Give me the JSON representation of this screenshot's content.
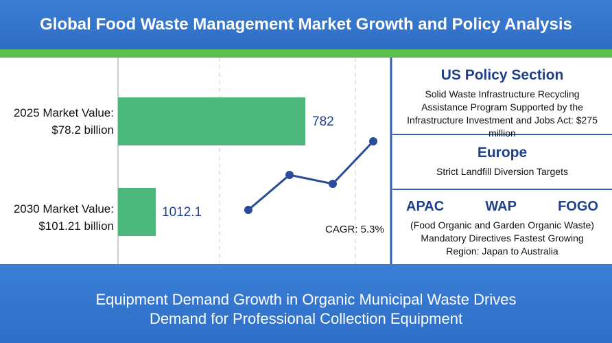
{
  "header": {
    "title": "Global Food Waste Management Market Growth and Policy Analysis"
  },
  "market": {
    "items": [
      {
        "label": [
          "2025 Market Value:",
          "$78.2 billion"
        ],
        "figure": "782"
      },
      {
        "label": [
          "2030 Market Value:",
          "$101.21 billion"
        ],
        "figure": "1012.1"
      }
    ],
    "cagr": "CAGR: 5.3%"
  },
  "policy": {
    "us": {
      "title": "US Policy Section",
      "lines": [
        "Solid Waste Infrastructure Recycling",
        "Assistance Program Supported by the",
        "Infrastructure Investment and Jobs Act: $275 million"
      ]
    },
    "europe": {
      "title": "Europe",
      "lines": [
        "Strict Landfill Diversion Targets"
      ]
    },
    "apac": {
      "tags": [
        "APAC",
        "WAP",
        "FOGO"
      ],
      "lines": [
        "(Food Organic and Garden Organic Waste)",
        "Mandatory Directives Fastest Growing",
        "Region: Japan to Australia"
      ]
    }
  },
  "footer": {
    "lines": [
      "Equipment Demand Growth in Organic Municipal Waste Drives",
      "Demand for Professional Collection Equipment"
    ]
  }
}
